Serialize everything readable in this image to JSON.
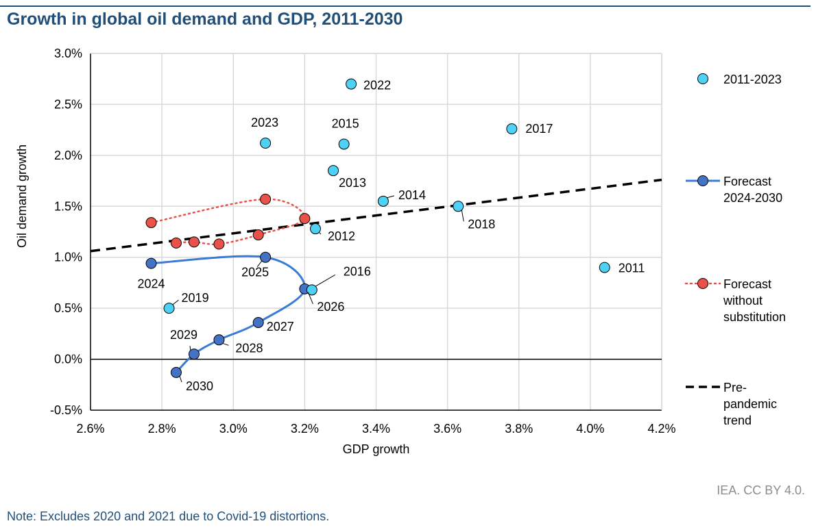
{
  "header": {
    "title": "Growth in global oil demand and GDP, 2011-2030"
  },
  "footer": {
    "credit": "IEA. CC BY 4.0.",
    "note": "Note: Excludes 2020 and 2021 due to Covid-19 distortions."
  },
  "colors": {
    "historical_fill": "#4fd1f5",
    "forecast_line": "#3a7bd5",
    "forecast_marker": "#4472c4",
    "no_substitution_line": "#e8524a",
    "no_substitution_marker": "#e8524a",
    "trend_line": "#000000",
    "grid": "#d9d9d9",
    "title": "#1f4e79"
  },
  "chart_data": {
    "type": "scatter",
    "xlabel": "GDP growth",
    "ylabel": "Oil demand growth",
    "xlim": [
      0.026,
      0.042
    ],
    "ylim": [
      -0.005,
      0.03
    ],
    "x_ticks": [
      "2.6%",
      "2.8%",
      "3.0%",
      "3.2%",
      "3.4%",
      "3.6%",
      "3.8%",
      "4.0%",
      "4.2%"
    ],
    "y_ticks": [
      "-0.5%",
      "0.0%",
      "0.5%",
      "1.0%",
      "1.5%",
      "2.0%",
      "2.5%",
      "3.0%"
    ],
    "grid": true,
    "legend_position": "right",
    "series": [
      {
        "name": "2011-2023",
        "style": "markers",
        "points": [
          {
            "label": "2011",
            "x": 0.0404,
            "y": 0.009
          },
          {
            "label": "2012",
            "x": 0.0323,
            "y": 0.0128
          },
          {
            "label": "2013",
            "x": 0.0328,
            "y": 0.0185
          },
          {
            "label": "2014",
            "x": 0.0342,
            "y": 0.0155
          },
          {
            "label": "2015",
            "x": 0.0331,
            "y": 0.0211
          },
          {
            "label": "2016",
            "x": 0.0322,
            "y": 0.0068
          },
          {
            "label": "2017",
            "x": 0.0378,
            "y": 0.0226
          },
          {
            "label": "2018",
            "x": 0.0363,
            "y": 0.015
          },
          {
            "label": "2019",
            "x": 0.0282,
            "y": 0.005
          },
          {
            "label": "2022",
            "x": 0.0333,
            "y": 0.027
          },
          {
            "label": "2023",
            "x": 0.0309,
            "y": 0.0212
          }
        ]
      },
      {
        "name": "Forecast 2024-2030",
        "style": "smooth-line-markers",
        "points": [
          {
            "label": "2024",
            "x": 0.0277,
            "y": 0.0094
          },
          {
            "label": "2025",
            "x": 0.0309,
            "y": 0.01
          },
          {
            "label": "2026",
            "x": 0.032,
            "y": 0.0069
          },
          {
            "label": "2027",
            "x": 0.0307,
            "y": 0.0036
          },
          {
            "label": "2028",
            "x": 0.0296,
            "y": 0.0019
          },
          {
            "label": "2029",
            "x": 0.0289,
            "y": 0.0005
          },
          {
            "label": "2030",
            "x": 0.0284,
            "y": -0.0013
          }
        ]
      },
      {
        "name": "Forecast without substitution",
        "style": "dotted-line-markers",
        "points": [
          {
            "x": 0.0277,
            "y": 0.0134
          },
          {
            "x": 0.0309,
            "y": 0.0157
          },
          {
            "x": 0.032,
            "y": 0.0138
          },
          {
            "x": 0.0307,
            "y": 0.0122
          },
          {
            "x": 0.0296,
            "y": 0.0113
          },
          {
            "x": 0.0289,
            "y": 0.0115
          },
          {
            "x": 0.0284,
            "y": 0.0114
          }
        ]
      },
      {
        "name": "Pre-pandemic trend",
        "style": "dashed-line",
        "points": [
          {
            "x": 0.026,
            "y": 0.0106
          },
          {
            "x": 0.042,
            "y": 0.0176
          }
        ]
      }
    ],
    "legend": [
      {
        "label": "2011-2023",
        "series": 0
      },
      {
        "label": "Forecast 2024-2030",
        "lines": [
          "Forecast",
          "2024-2030"
        ],
        "series": 1
      },
      {
        "label": "Forecast without substitution",
        "lines": [
          "Forecast",
          "without",
          "substitution"
        ],
        "series": 2
      },
      {
        "label": "Pre-pandemic trend",
        "lines": [
          "Pre-",
          "pandemic",
          "trend"
        ],
        "series": 3
      }
    ]
  }
}
